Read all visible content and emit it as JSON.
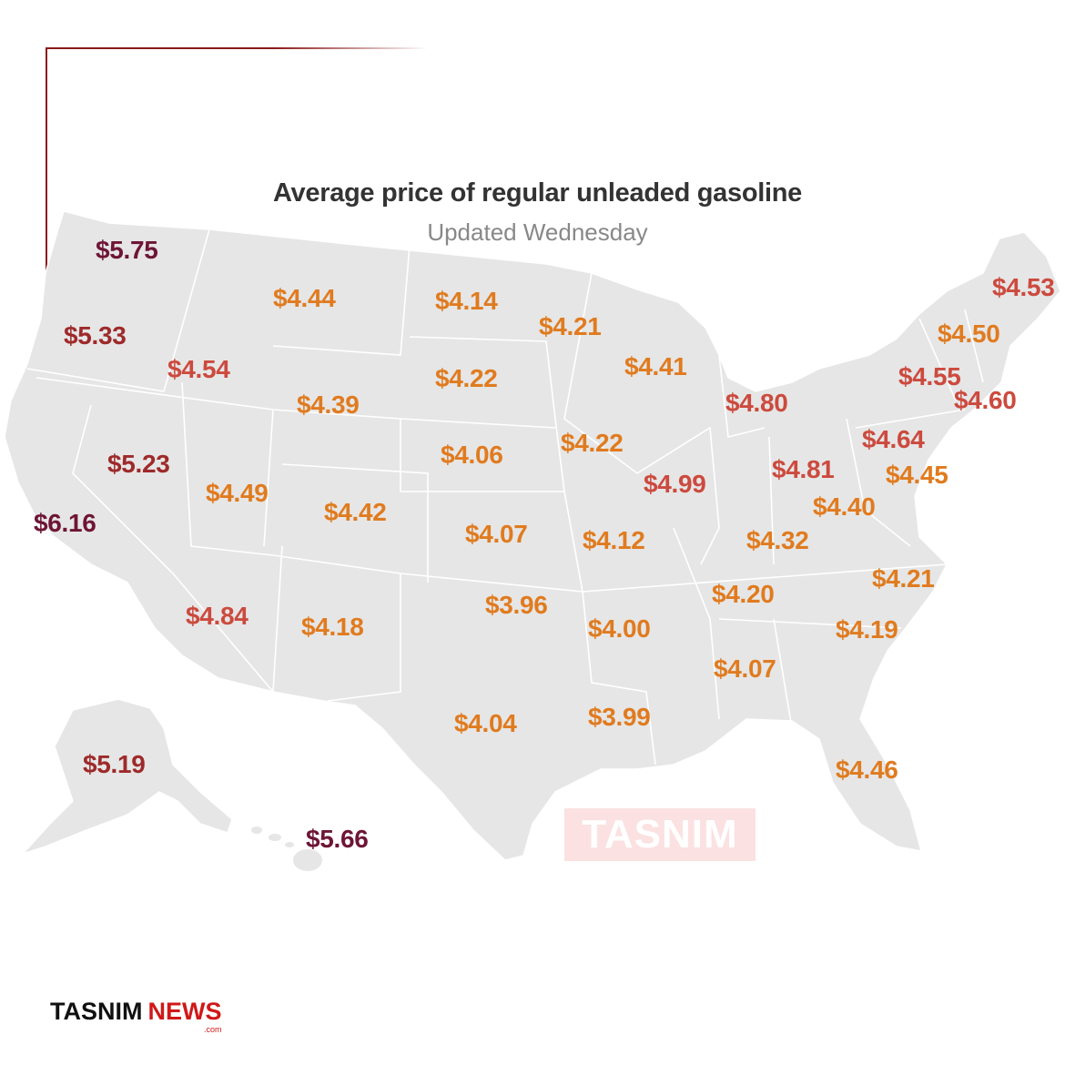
{
  "title": "Average price of regular unleaded gasoline",
  "subtitle": "Updated Wednesday",
  "colors": {
    "low": "#e07b1f",
    "mid": "#cc4a3e",
    "high": "#9e2a2a",
    "highest": "#6e1535",
    "land": "#e6e6e6",
    "border": "#ffffff"
  },
  "prices": [
    {
      "value": "$5.75",
      "tier": "highest"
    },
    {
      "value": "$5.33",
      "tier": "high"
    },
    {
      "value": "$4.54",
      "tier": "mid"
    },
    {
      "value": "$4.44",
      "tier": "low"
    },
    {
      "value": "$4.14",
      "tier": "low"
    },
    {
      "value": "$4.21",
      "tier": "low"
    },
    {
      "value": "$4.53",
      "tier": "mid"
    },
    {
      "value": "$4.50",
      "tier": "low"
    },
    {
      "value": "$4.41",
      "tier": "low"
    },
    {
      "value": "$4.22",
      "tier": "low"
    },
    {
      "value": "$4.39",
      "tier": "low"
    },
    {
      "value": "$4.55",
      "tier": "mid"
    },
    {
      "value": "$4.80",
      "tier": "mid"
    },
    {
      "value": "$4.60",
      "tier": "mid"
    },
    {
      "value": "$4.64",
      "tier": "mid"
    },
    {
      "value": "$5.23",
      "tier": "high"
    },
    {
      "value": "$4.06",
      "tier": "low"
    },
    {
      "value": "$4.22",
      "tier": "low"
    },
    {
      "value": "$4.81",
      "tier": "mid"
    },
    {
      "value": "$4.45",
      "tier": "low"
    },
    {
      "value": "$4.99",
      "tier": "mid"
    },
    {
      "value": "$4.49",
      "tier": "low"
    },
    {
      "value": "$6.16",
      "tier": "highest"
    },
    {
      "value": "$4.42",
      "tier": "low"
    },
    {
      "value": "$4.40",
      "tier": "low"
    },
    {
      "value": "$4.07",
      "tier": "low"
    },
    {
      "value": "$4.12",
      "tier": "low"
    },
    {
      "value": "$4.32",
      "tier": "low"
    },
    {
      "value": "$4.21",
      "tier": "low"
    },
    {
      "value": "$3.96",
      "tier": "low"
    },
    {
      "value": "$4.20",
      "tier": "low"
    },
    {
      "value": "$4.84",
      "tier": "mid"
    },
    {
      "value": "$4.18",
      "tier": "low"
    },
    {
      "value": "$4.00",
      "tier": "low"
    },
    {
      "value": "$4.19",
      "tier": "low"
    },
    {
      "value": "$4.07",
      "tier": "low"
    },
    {
      "value": "$4.04",
      "tier": "low"
    },
    {
      "value": "$3.99",
      "tier": "low"
    },
    {
      "value": "$5.19",
      "tier": "high"
    },
    {
      "value": "$4.46",
      "tier": "low"
    },
    {
      "value": "$5.66",
      "tier": "highest"
    }
  ],
  "watermark": "TASNIM",
  "footer": {
    "brand_a": "TASNIM",
    "brand_b": "NEWS",
    "brand_c": ".com"
  }
}
